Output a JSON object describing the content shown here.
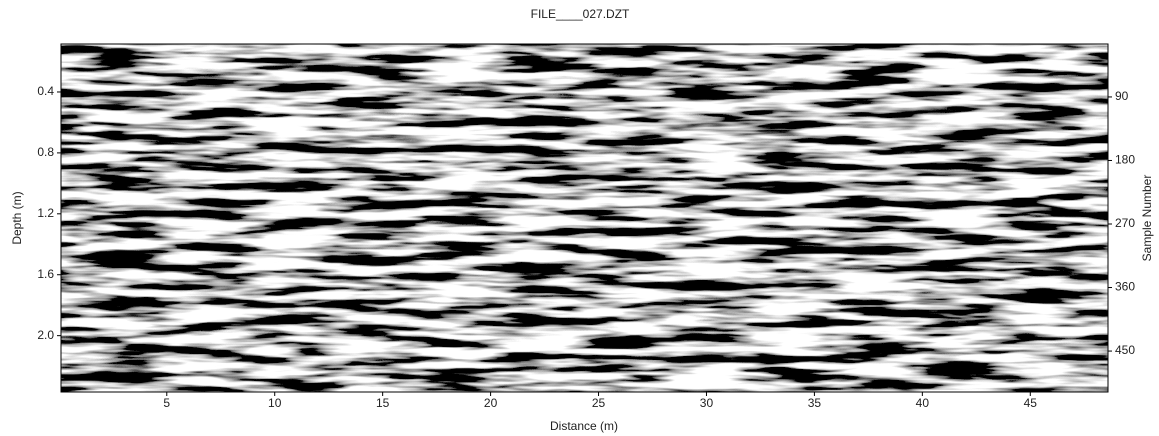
{
  "chart_data": {
    "type": "radargram",
    "title": "FILE____027.DZT",
    "xlabel": "Distance (m)",
    "ylabel": "Depth (m)",
    "y2label": "Sample Number",
    "xlim": [
      0.1,
      48.6
    ],
    "xticks": [
      5,
      10,
      15,
      20,
      25,
      30,
      35,
      40,
      45
    ],
    "ylim": [
      0.085,
      2.37
    ],
    "yticks": [
      0.4,
      0.8,
      1.2,
      1.6,
      {
        "value": 2,
        "label": "2.0"
      }
    ],
    "y2lim": [
      15,
      508
    ],
    "y2ticks": [
      90,
      180,
      270,
      360,
      450
    ]
  }
}
